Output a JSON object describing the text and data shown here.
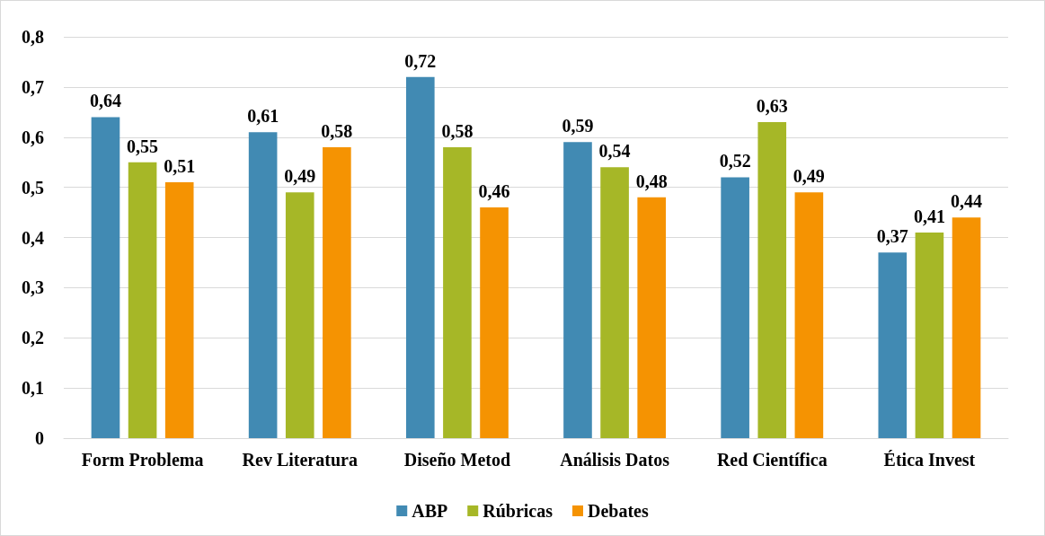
{
  "chart_data": {
    "type": "bar",
    "categories": [
      "Form Problema",
      "Rev Literatura",
      "Diseño Metod",
      "Análisis Datos",
      "Red Científica",
      "Ética Invest"
    ],
    "series": [
      {
        "name": "ABP",
        "color": "#418ab3",
        "values": [
          0.64,
          0.61,
          0.72,
          0.59,
          0.52,
          0.37
        ],
        "value_labels": [
          "0,64",
          "0,61",
          "0,72",
          "0,59",
          "0,52",
          "0,37"
        ]
      },
      {
        "name": "Rúbricas",
        "color": "#a6b727",
        "values": [
          0.55,
          0.49,
          0.58,
          0.54,
          0.63,
          0.41
        ],
        "value_labels": [
          "0,55",
          "0,49",
          "0,58",
          "0,54",
          "0,63",
          "0,41"
        ]
      },
      {
        "name": "Debates",
        "color": "#f59302",
        "values": [
          0.51,
          0.58,
          0.46,
          0.48,
          0.49,
          0.44
        ],
        "value_labels": [
          "0,51",
          "0,58",
          "0,46",
          "0,48",
          "0,49",
          "0,44"
        ]
      }
    ],
    "ylim": [
      0,
      0.8
    ],
    "yticks": [
      0,
      {
        "value": 0.1,
        "label": "0,1"
      },
      {
        "value": 0.2,
        "label": "0,2"
      },
      {
        "value": 0.3,
        "label": "0,3"
      },
      {
        "value": 0.4,
        "label": "0,4"
      },
      {
        "value": 0.5,
        "label": "0,5"
      },
      {
        "value": 0.6,
        "label": "0,6"
      },
      {
        "value": 0.7,
        "label": "0,7"
      },
      {
        "value": 0.8,
        "label": "0,8"
      }
    ],
    "grid": "y",
    "legend": "bottom"
  }
}
